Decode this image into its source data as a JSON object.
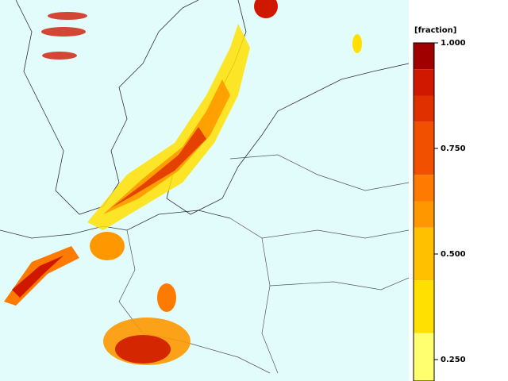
{
  "colorbar": {
    "label": "[fraction]",
    "ticks": [
      {
        "value": 1,
        "label": "1.000"
      },
      {
        "value": 0.75,
        "label": "0.750"
      },
      {
        "value": 0.5,
        "label": "0.500"
      },
      {
        "value": 0.25,
        "label": "0.250"
      }
    ],
    "levels": [
      1,
      0.9375,
      0.875,
      0.8125,
      0.6875,
      0.625,
      0.5625,
      0.4375,
      0.3125,
      0.2
    ],
    "colors": [
      "#a00000",
      "#d01800",
      "#e03000",
      "#f05000",
      "#ff7a00",
      "#ff9800",
      "#ffc000",
      "#ffe000",
      "#ffff70"
    ]
  }
}
